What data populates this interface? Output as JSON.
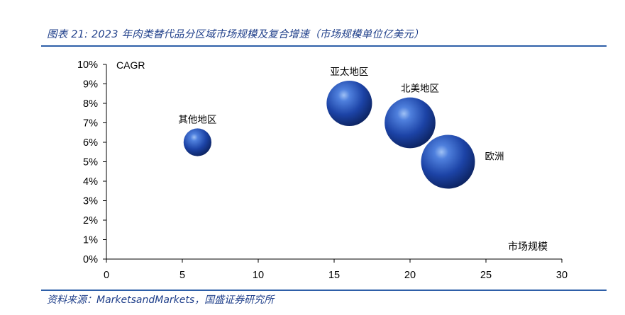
{
  "figure": {
    "title": "图表 21:  2023 年肉类替代品分区域市场规模及复合增速（市场规模单位亿美元）",
    "source": "资料来源：MarketsandMarkets，国盛证券研究所"
  },
  "chart_data": {
    "type": "scatter",
    "title": "",
    "xlabel": "市场规模",
    "ylabel": "CAGR",
    "xlim": [
      0,
      30
    ],
    "ylim": [
      0,
      10
    ],
    "xticks": [
      "0",
      "5",
      "10",
      "15",
      "20",
      "25",
      "30"
    ],
    "yticks": [
      "0%",
      "1%",
      "2%",
      "3%",
      "4%",
      "5%",
      "6%",
      "7%",
      "8%",
      "9%",
      "10%"
    ],
    "grid": false,
    "bubble_color": "#1f45a8",
    "points": [
      {
        "label": "其他地区",
        "x": 6.0,
        "y": 6.0,
        "size": 6.0
      },
      {
        "label": "亚太地区",
        "x": 16.0,
        "y": 8.0,
        "size": 16.0
      },
      {
        "label": "北美地区",
        "x": 20.0,
        "y": 7.0,
        "size": 20.0
      },
      {
        "label": "欧洲",
        "x": 22.5,
        "y": 5.0,
        "size": 22.5
      }
    ]
  }
}
